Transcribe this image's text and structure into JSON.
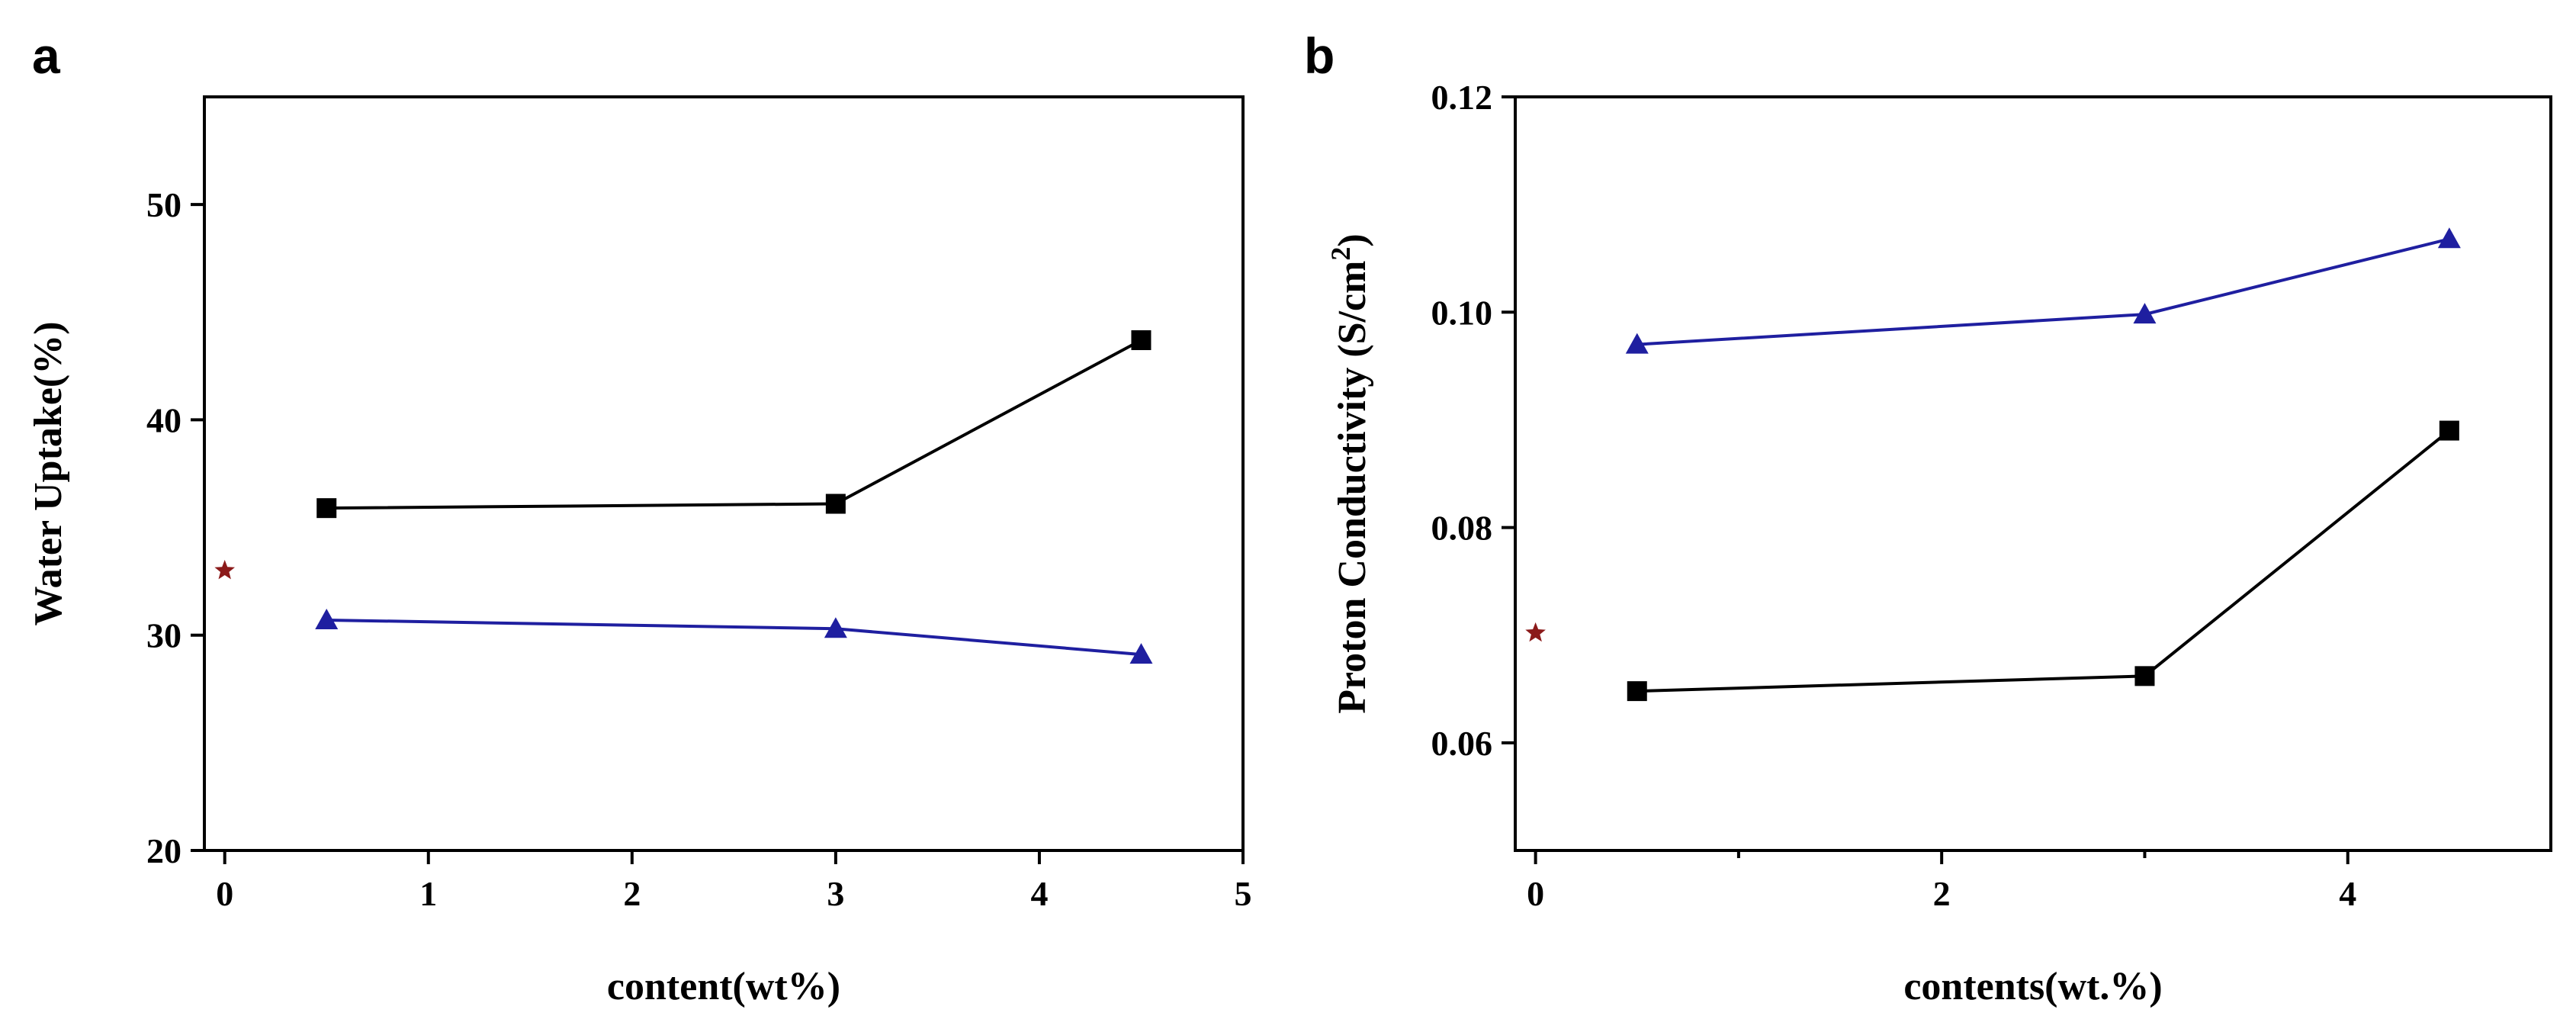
{
  "chart_data": [
    {
      "panel": "a",
      "type": "line",
      "xlabel": "content(wt%)",
      "ylabel": "Water Uptake(%)",
      "xlim": [
        -0.1,
        5
      ],
      "ylim": [
        20,
        55
      ],
      "xticks": [
        0,
        1,
        2,
        3,
        4,
        5
      ],
      "yticks": [
        20,
        30,
        40,
        50
      ],
      "xtick_labels": [
        "0",
        "1",
        "2",
        "3",
        "4",
        "5"
      ],
      "ytick_labels": [
        "20",
        "30",
        "40",
        "50"
      ],
      "grid": false,
      "series": [
        {
          "name": "squares",
          "marker": "square",
          "color": "#000000",
          "x": [
            0.5,
            3,
            4.5
          ],
          "y": [
            35.9,
            36.1,
            43.7
          ]
        },
        {
          "name": "triangles",
          "marker": "triangle",
          "color": "#1f1fa0",
          "x": [
            0.5,
            3,
            4.5
          ],
          "y": [
            30.7,
            30.3,
            29.1
          ]
        },
        {
          "name": "star",
          "marker": "star",
          "color": "#8b1a1a",
          "x": [
            0
          ],
          "y": [
            33.0
          ]
        }
      ]
    },
    {
      "panel": "b",
      "type": "line",
      "xlabel": "contents(wt.%)",
      "ylabel": "Proton Conductivity (S/cm",
      "ylabel_sup": "2",
      "ylabel_close": ")",
      "xlim": [
        -0.1,
        5
      ],
      "ylim": [
        0.05,
        0.12
      ],
      "xticks": [
        0,
        2,
        4
      ],
      "minor_xticks": [
        1,
        3
      ],
      "yticks": [
        0.06,
        0.08,
        0.1,
        0.12
      ],
      "xtick_labels": [
        "0",
        "2",
        "4"
      ],
      "ytick_labels": [
        "0.06",
        "0.08",
        "0.10",
        "0.12"
      ],
      "grid": false,
      "series": [
        {
          "name": "triangles",
          "marker": "triangle",
          "color": "#1f1fa0",
          "x": [
            0.5,
            3,
            4.5
          ],
          "y": [
            0.097,
            0.0998,
            0.1068
          ]
        },
        {
          "name": "squares",
          "marker": "square",
          "color": "#000000",
          "x": [
            0.5,
            3,
            4.5
          ],
          "y": [
            0.0648,
            0.0662,
            0.089
          ]
        },
        {
          "name": "star",
          "marker": "star",
          "color": "#8b1a1a",
          "x": [
            0
          ],
          "y": [
            0.0702
          ]
        }
      ]
    }
  ]
}
